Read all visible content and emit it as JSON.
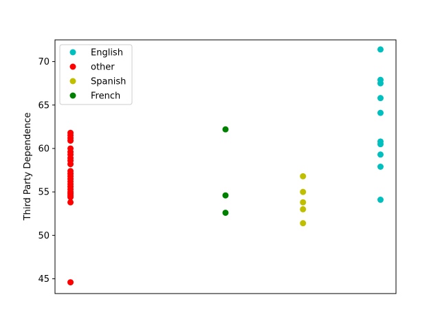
{
  "chart_data": {
    "type": "scatter",
    "title": "",
    "xlabel": "",
    "ylabel": "Third Party Dependence",
    "ylim": [
      43.3,
      72.5
    ],
    "yticks": [
      45,
      50,
      55,
      60,
      65,
      70
    ],
    "xlim": [
      -0.2,
      4.2
    ],
    "x_ticks_visible": false,
    "grid": false,
    "legend_position": "top-left",
    "series": [
      {
        "name": "English",
        "color": "#00bfbf",
        "x": [
          4,
          4,
          4,
          4,
          4,
          4,
          4,
          4,
          4,
          4
        ],
        "y": [
          71.4,
          67.9,
          67.5,
          65.8,
          64.1,
          60.8,
          60.5,
          59.3,
          57.9,
          54.1
        ]
      },
      {
        "name": "other",
        "color": "#ff0000",
        "x": [
          0,
          0,
          0,
          0,
          0,
          0,
          0,
          0,
          0,
          0,
          0,
          0,
          0,
          0,
          0,
          0,
          0,
          0,
          0,
          0,
          0,
          0,
          0,
          0
        ],
        "y": [
          61.8,
          61.5,
          61.2,
          60.9,
          60.0,
          59.6,
          59.3,
          58.9,
          58.6,
          58.2,
          57.4,
          57.1,
          56.8,
          56.5,
          56.2,
          55.9,
          55.6,
          55.3,
          55.0,
          54.8,
          54.6,
          54.4,
          53.8,
          44.6
        ]
      },
      {
        "name": "Spanish",
        "color": "#bfbf00",
        "x": [
          3,
          3,
          3,
          3,
          3
        ],
        "y": [
          56.8,
          55.0,
          53.8,
          53.0,
          51.4
        ]
      },
      {
        "name": "French",
        "color": "#008000",
        "x": [
          2,
          2,
          2
        ],
        "y": [
          62.2,
          54.6,
          52.6
        ]
      }
    ]
  }
}
